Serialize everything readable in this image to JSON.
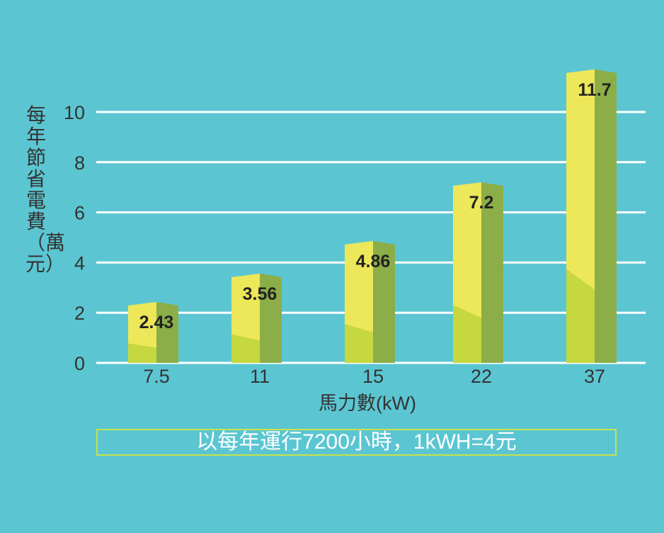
{
  "chart_data": {
    "type": "bar",
    "categories": [
      "7.5",
      "11",
      "15",
      "22",
      "37"
    ],
    "values": [
      2.43,
      3.56,
      4.86,
      7.2,
      11.7
    ],
    "value_labels": [
      "2.43",
      "3.56",
      "4.86",
      "7.2",
      "11.7"
    ],
    "title": "",
    "xlabel": "馬力數(kW)",
    "ylabel": "每年節省電費（萬元）",
    "yticks": [
      "0",
      "2",
      "4",
      "6",
      "8",
      "10"
    ],
    "ylim": [
      0,
      12
    ],
    "grid": true,
    "colors": {
      "front": "#ede75a",
      "front_lower": "#c5d83f",
      "side": "#8cae48",
      "grid": "#ffffff",
      "text": "#333333"
    }
  },
  "note": "以每年運行7200小時，1kWH=4元"
}
